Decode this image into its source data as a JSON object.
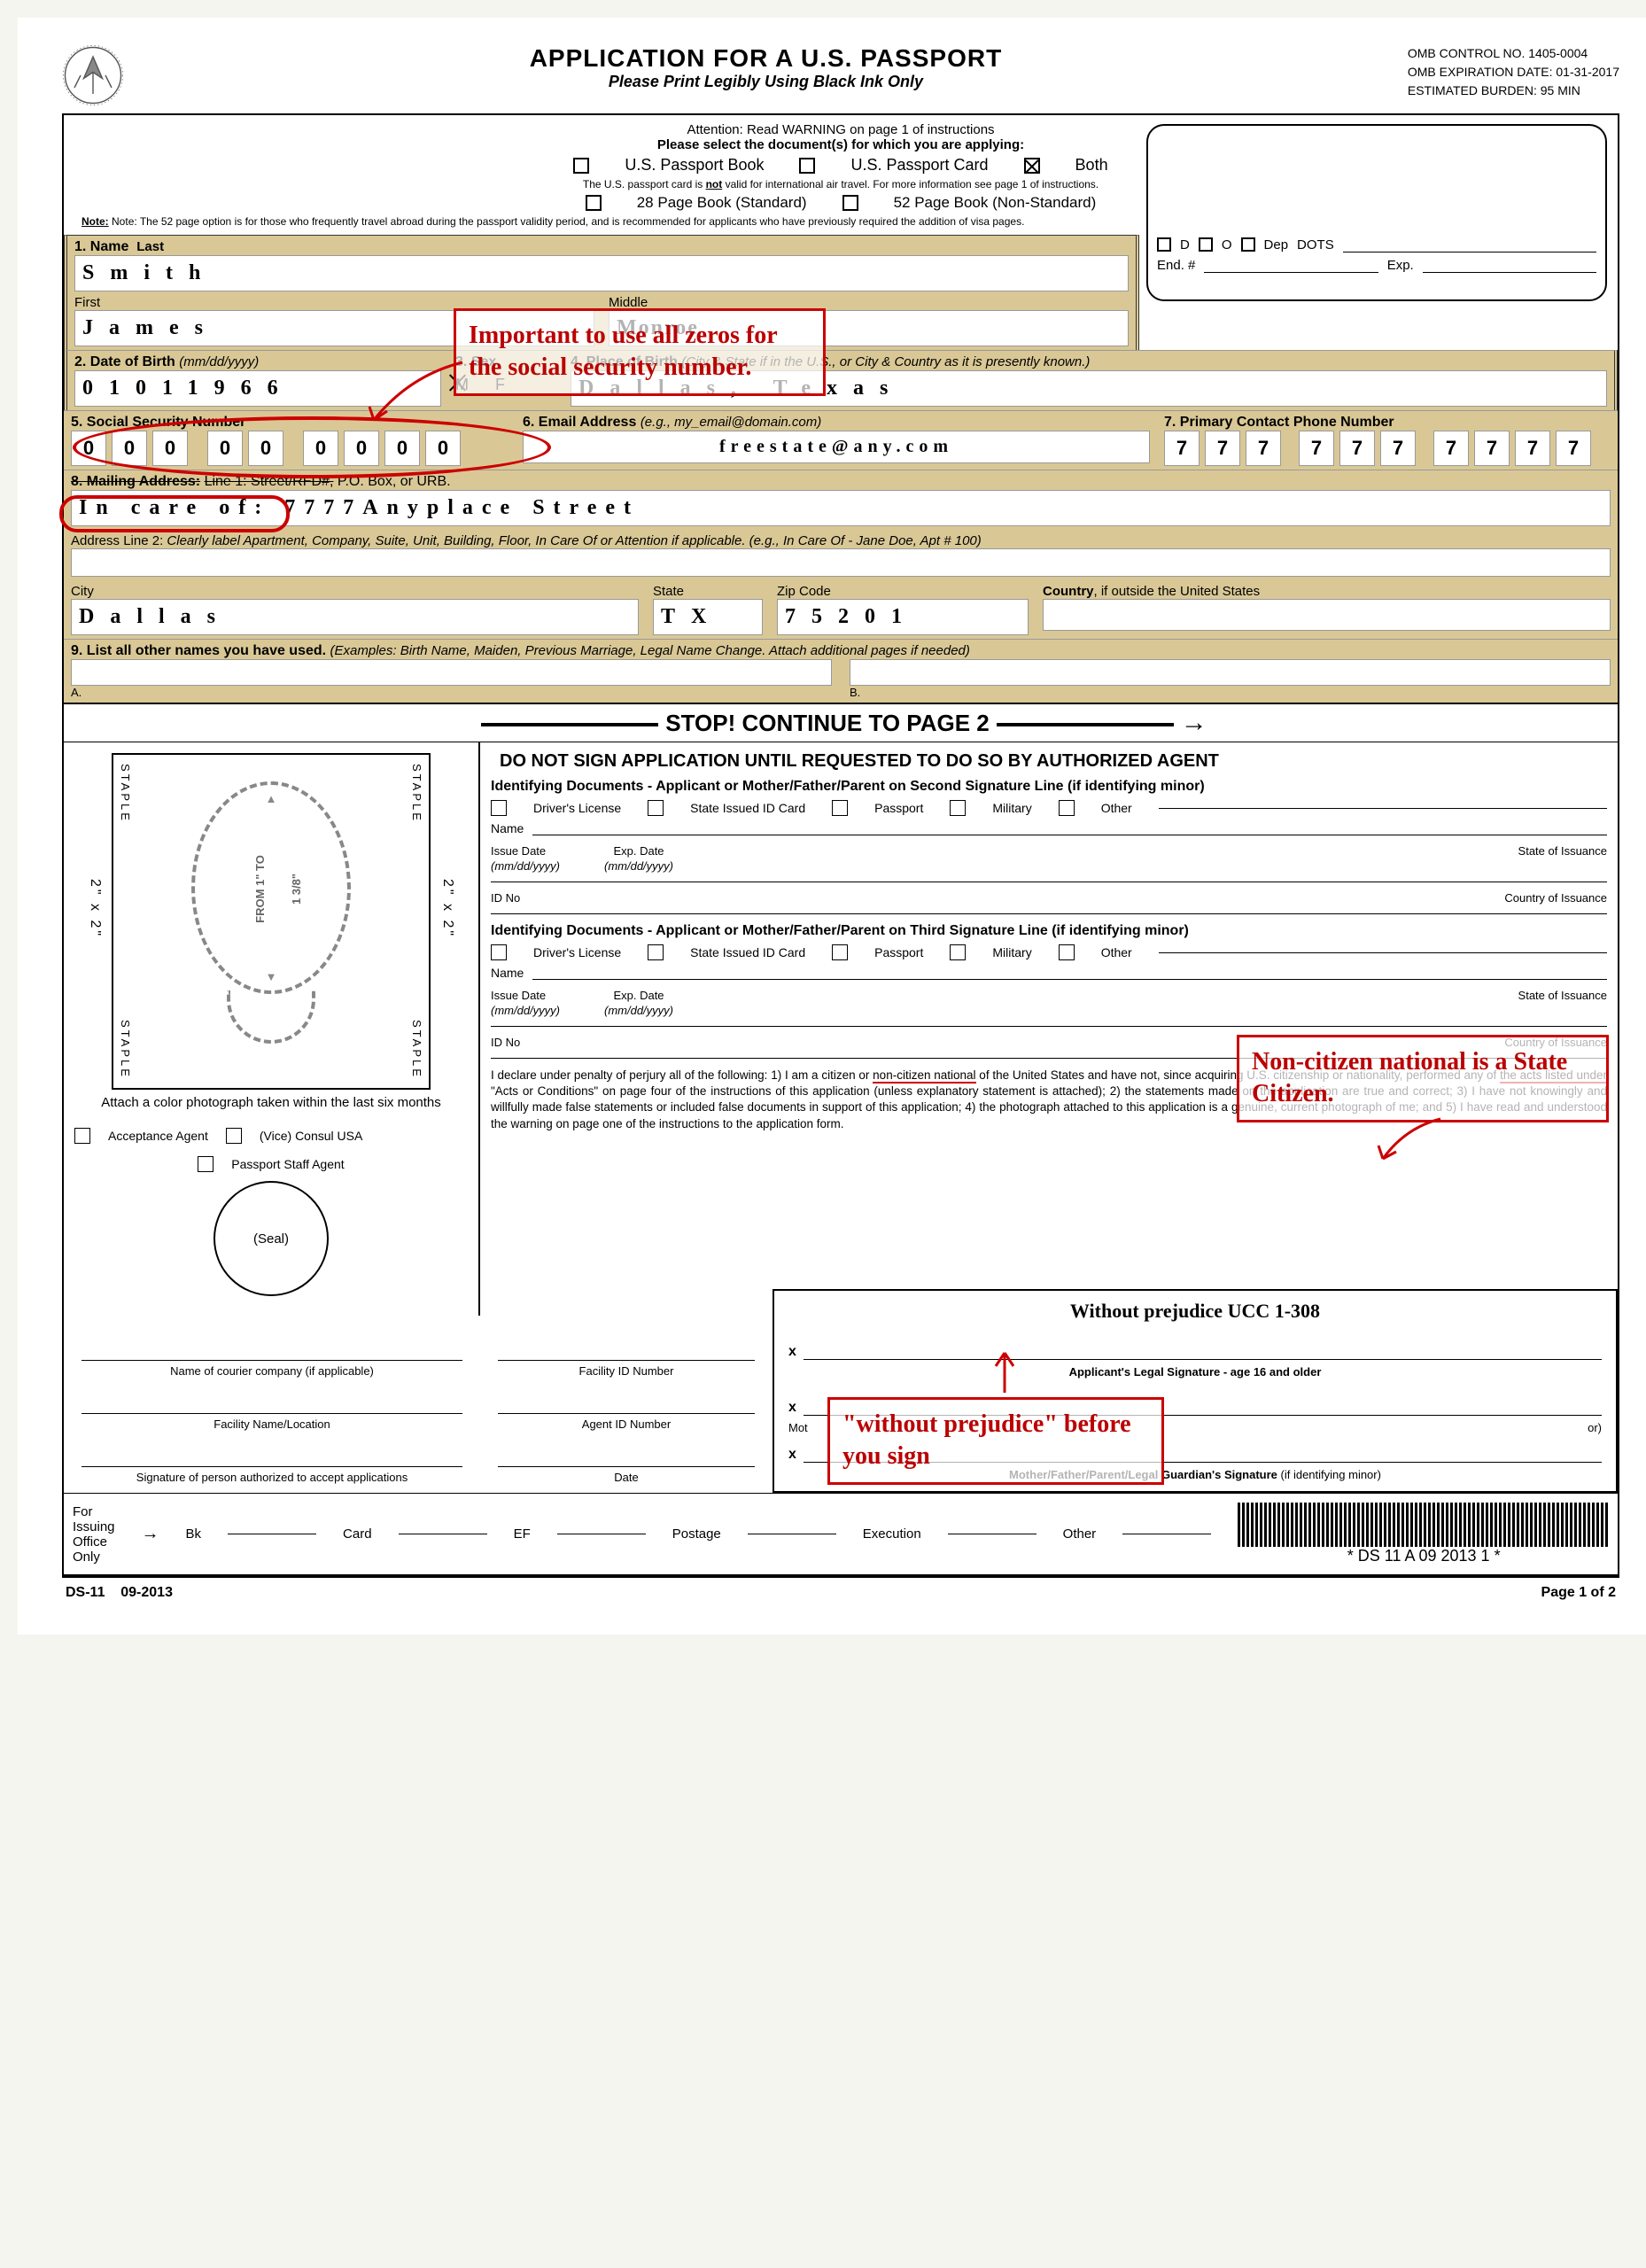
{
  "header": {
    "title": "APPLICATION FOR A U.S. PASSPORT",
    "subtitle": "Please Print Legibly Using Black Ink Only",
    "omb_control": "OMB CONTROL NO. 1405-0004",
    "omb_exp": "OMB EXPIRATION DATE: 01-31-2017",
    "omb_burden": "ESTIMATED BURDEN: 95 MIN"
  },
  "top": {
    "attention": "Attention: Read WARNING on page 1 of instructions",
    "select_docs": "Please select the document(s) for which you are applying:",
    "book": "U.S. Passport Book",
    "card": "U.S. Passport Card",
    "both": "Both",
    "card_note": "The U.S. passport card is not valid for international air travel. For more information see page 1 of instructions.",
    "p28": "28 Page Book (Standard)",
    "p52": "52 Page Book (Non-Standard)",
    "page_note": "Note: The 52 page option is for those who frequently travel abroad during the passport validity period, and is recommended for applicants who have previously required the addition of visa pages."
  },
  "dept_box": {
    "d": "D",
    "o": "O",
    "dep": "Dep",
    "dots": "DOTS",
    "end": "End. #",
    "exp": "Exp."
  },
  "f1": {
    "label": "1. Name",
    "last": "Last",
    "first": "First",
    "middle": "Middle",
    "last_val": "Smith",
    "first_val": "James",
    "middle_val": "Monroe"
  },
  "f2": {
    "label": "2. Date of Birth",
    "hint": "(mm/dd/yyyy)",
    "val": "01011966"
  },
  "f3": {
    "label": "3. Sex",
    "m": "M",
    "f": "F"
  },
  "f4": {
    "label": "4. Place of Birth",
    "hint": "(City & State if in the U.S., or City & Country as it is presently known.)",
    "val": "Dallas, Texas"
  },
  "f5": {
    "label": "5. Social Security Number",
    "val": "000000000"
  },
  "f6": {
    "label": "6. Email Address",
    "hint": "(e.g., my_email@domain.com)",
    "val": "freestate@any.com"
  },
  "f7": {
    "label": "7. Primary Contact Phone Number",
    "val": "7777777777"
  },
  "f8": {
    "label": "8. Mailing Address:",
    "line1_label": "Line 1: Street/RFD#,",
    "line1_rest": " P.O. Box, or URB.",
    "line1_val": "In care of: 7777Anyplace Street",
    "line2_label": "Address Line 2:",
    "line2_hint": "Clearly label Apartment, Company, Suite, Unit, Building, Floor, In Care Of or Attention if applicable. (e.g., In Care Of - Jane Doe, Apt # 100)",
    "city": "City",
    "city_val": "Dallas",
    "state": "State",
    "state_val": "TX",
    "zip": "Zip Code",
    "zip_val": "75201",
    "country": "Country",
    "country_hint": ", if outside the United States"
  },
  "f9": {
    "label": "9. List all other names you have used.",
    "hint": "(Examples: Birth Name, Maiden, Previous Marriage, Legal Name Change.  Attach additional  pages if needed)",
    "a": "A.",
    "b": "B."
  },
  "annotations": {
    "ssn_note": "Important to use all zeros for the social security number.",
    "noncitizen": "Non-citizen national is a State Citizen.",
    "wp_instruction": "\"without prejudice\" before you sign",
    "wp_text": "Without prejudice UCC 1-308"
  },
  "stop": {
    "main": "STOP! CONTINUE TO PAGE 2",
    "sub": "DO NOT SIGN APPLICATION UNTIL REQUESTED TO DO SO BY AUTHORIZED AGENT"
  },
  "id_docs": {
    "title1": "Identifying Documents - Applicant or Mother/Father/Parent on Second Signature Line (if identifying minor)",
    "title2": "Identifying Documents - Applicant or Mother/Father/Parent on Third Signature Line (if identifying minor)",
    "dl": "Driver's License",
    "state_id": "State Issued ID Card",
    "pp": "Passport",
    "mil": "Military",
    "other": "Other",
    "name": "Name",
    "issue": "Issue Date",
    "issue_hint": "(mm/dd/yyyy)",
    "exp": "Exp. Date",
    "exp_hint": "(mm/dd/yyyy)",
    "state_iss": "State of Issuance",
    "idno": "ID No",
    "country_iss": "Country of Issuance"
  },
  "photo": {
    "size": "2\" x 2\"",
    "staple": "STAPLE",
    "from": "FROM 1\" TO",
    "frac": "1 3/8\"",
    "caption": "Attach a color photograph taken within the last six months"
  },
  "agent": {
    "acceptance": "Acceptance Agent",
    "vice": "(Vice) Consul USA",
    "staff": "Passport Staff Agent",
    "seal": "(Seal)",
    "courier": "Name of courier company (if applicable)",
    "facility_name": "Facility Name/Location",
    "sig_auth": "Signature of person authorized to accept applications",
    "facility_id": "Facility ID Number",
    "agent_id": "Agent ID Number",
    "date": "Date"
  },
  "perjury": "I declare under penalty of perjury all of the following: 1) I am a citizen or non-citizen national of the United States and have not, since acquiring U.S. citizenship or nationality, performed any of the acts listed under \"Acts or Conditions\" on page four of the instructions of this application (unless explanatory statement is attached); 2) the statements made on the application are true and correct; 3) I have not knowingly and willfully made false statements or included false documents in support of this application; 4) the photograph attached to this application is a genuine, current photograph of me; and 5) I have read and understood the warning on page one of the instructions to the application form.",
  "sig": {
    "applicant": "Applicant's Legal Signature - age 16 and older",
    "mother": "Mother/Father/Parent/Legal Guardian's Signature (if identifying minor)",
    "mother_short": "Mot",
    "or_end": "or)"
  },
  "issuing": {
    "label": "For Issuing Office Only",
    "bk": "Bk",
    "card": "Card",
    "ef": "EF",
    "postage": "Postage",
    "exec": "Execution",
    "other": "Other",
    "barcode_text": "* DS 11 A 09 2013 1 *"
  },
  "footer": {
    "form": "DS-11",
    "rev": "09-2013",
    "page": "Page 1 of 2"
  }
}
